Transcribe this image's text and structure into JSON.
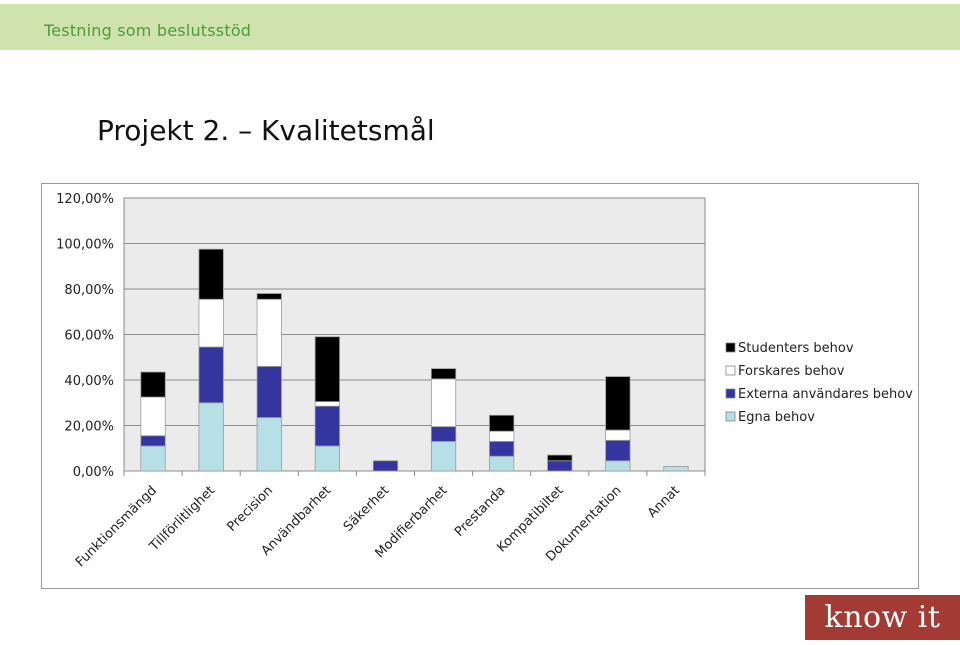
{
  "header": {
    "title": "Testning som beslutsstöd"
  },
  "slide": {
    "title": "Projekt 2. – Kvalitetsmål"
  },
  "logo": {
    "text": "know it",
    "color": "#a33a34"
  },
  "chart_data": {
    "type": "bar",
    "stacked": true,
    "title": "",
    "xlabel": "",
    "ylabel": "",
    "ylim": [
      0,
      120
    ],
    "yticks": [
      "0,00%",
      "20,00%",
      "40,00%",
      "60,00%",
      "80,00%",
      "100,00%",
      "120,00%"
    ],
    "grid": true,
    "legend_position": "right",
    "categories": [
      "Funktionsmängd",
      "Tillförlitlighet",
      "Precision",
      "Användbarhet",
      "Säkerhet",
      "Modifierbarhet",
      "Prestanda",
      "Kompatibiltet",
      "Dokumentation",
      "Annat"
    ],
    "series": [
      {
        "name": "Egna behov",
        "color": "#b7e0e6",
        "values": [
          11,
          30,
          23.5,
          11,
          0,
          13,
          6.5,
          0,
          4.5,
          2
        ]
      },
      {
        "name": "Externa användares behov",
        "color": "#3535a0",
        "values": [
          4.5,
          24.5,
          22.5,
          17.5,
          4.5,
          6.5,
          6.5,
          4.5,
          9,
          0
        ]
      },
      {
        "name": "Forskares behov",
        "color": "#ffffff",
        "values": [
          17,
          21,
          29.5,
          2,
          0,
          21,
          4.5,
          0,
          4.5,
          0
        ]
      },
      {
        "name": "Studenters behov",
        "color": "#000000",
        "values": [
          11,
          22,
          2.5,
          28.5,
          0,
          4.5,
          7,
          2.5,
          23.5,
          0
        ]
      }
    ],
    "legend_order": [
      "Studenters behov",
      "Forskares behov",
      "Externa användares behov",
      "Egna behov"
    ]
  }
}
